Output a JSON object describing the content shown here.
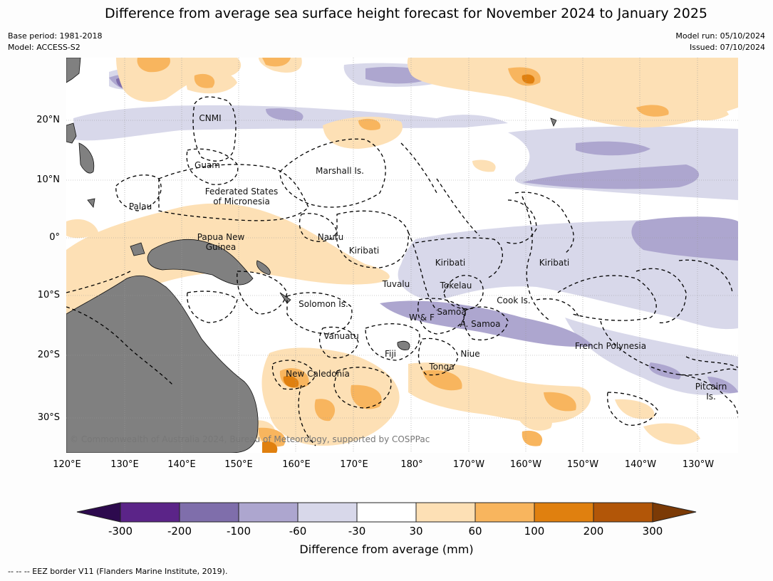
{
  "title": "Difference from average sea surface height forecast for November 2024 to January 2025",
  "meta": {
    "base_period": "Base period: 1981-2018",
    "model": "Model: ACCESS-S2",
    "model_run": "Model run: 05/10/2024",
    "issued": "Issued: 07/10/2024"
  },
  "axes": {
    "lat_labels": [
      "20°N",
      "10°N",
      "0°",
      "10°S",
      "20°S",
      "30°S"
    ],
    "lon_labels": [
      "120°E",
      "130°E",
      "140°E",
      "150°E",
      "160°E",
      "170°E",
      "180°",
      "170°W",
      "160°W",
      "150°W",
      "140°W",
      "130°W"
    ]
  },
  "regions": {
    "cnmi": "CNMI",
    "guam": "Guam",
    "marshall": "Marshall Is.",
    "fsm_1": "Federated States",
    "fsm_2": "of Micronesia",
    "palau": "Palau",
    "png_1": "Papua New",
    "png_2": "Guinea",
    "nauru": "Nauru",
    "kiribati_w": "Kiribati",
    "kiribati_c": "Kiribati",
    "kiribati_e": "Kiribati",
    "tuvalu": "Tuvalu",
    "tokelau": "Tokelau",
    "cook": "Cook Is.",
    "solomon": "Solomon Is.",
    "samoa": "Samoa",
    "wf": "W & F",
    "asamoa": "A. Samoa",
    "vanuatu": "Vanuatu",
    "fiji": "Fiji",
    "niue": "Niue",
    "tonga": "Tonga",
    "french_polynesia": "French Polynesia",
    "new_caledonia": "New Caledonia",
    "pitcairn_1": "Pitcairn",
    "pitcairn_2": "Is."
  },
  "copyright": "© Commonwealth of Australia 2024, Bureau of Meteorology, supported by COSPPac",
  "colorbar": {
    "title": "Difference from average (mm)",
    "tick_labels": [
      "-300",
      "-200",
      "-100",
      "-60",
      "-30",
      "30",
      "60",
      "100",
      "200",
      "300"
    ],
    "colors": {
      "below_-300": "#2d0a4e",
      "-300_-200": "#5b2488",
      "-200_-100": "#7f6eab",
      "-100_-60": "#ada6cf",
      "-60_-30": "#d8d8ea",
      "-30_30": "#ffffff",
      "30_60": "#fde0b5",
      "60_100": "#f8b55e",
      "100_200": "#e0800f",
      "200_300": "#b25608",
      "above_300": "#7b3a06"
    }
  },
  "footnote": "--  --  -- EEZ border V11 (Flanders Marine Institute, 2019)."
}
